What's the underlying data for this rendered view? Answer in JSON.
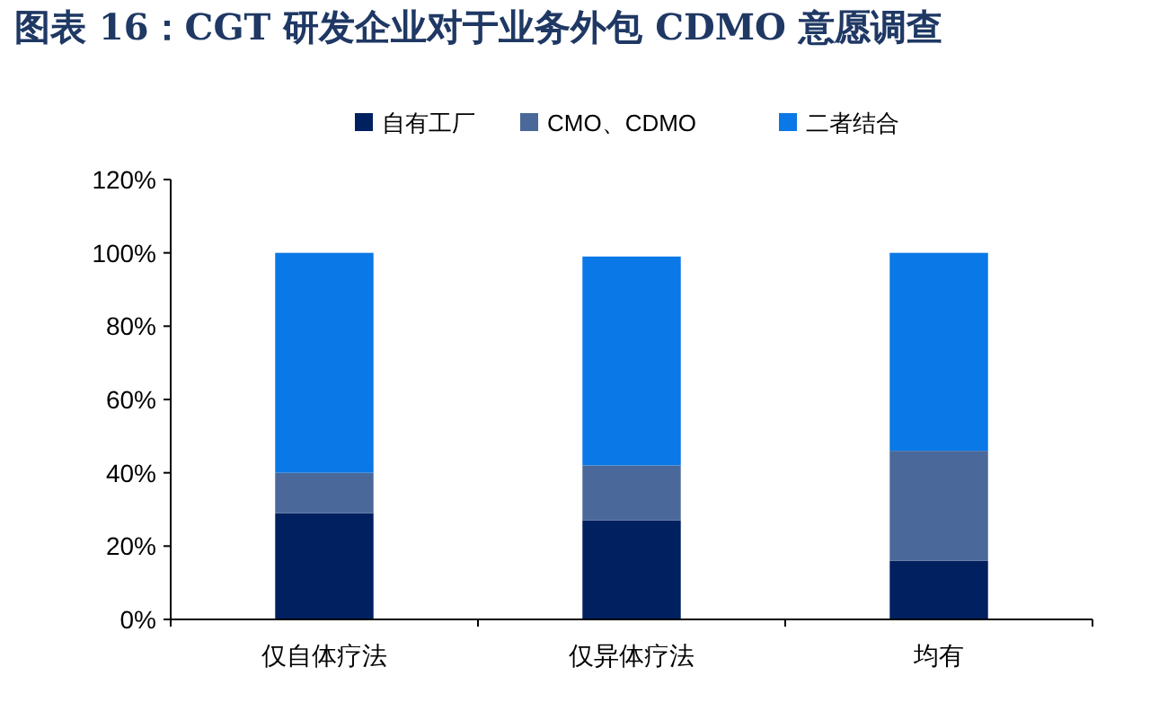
{
  "chart_data": {
    "type": "bar",
    "title": "图表 16：CGT 研发企业对于业务外包 CDMO 意愿调查",
    "categories": [
      "仅自体疗法",
      "仅异体疗法",
      "均有"
    ],
    "stacked": true,
    "legend": "top",
    "series": [
      {
        "name": "自有工厂",
        "color": "#002060",
        "values": [
          29,
          27,
          16
        ]
      },
      {
        "name": "CMO、CDMO",
        "color": "#4a6899",
        "values": [
          11,
          15,
          30
        ]
      },
      {
        "name": "二者结合",
        "color": "#0a78e6",
        "values": [
          60,
          57,
          54
        ]
      }
    ],
    "ylim": [
      0,
      120
    ],
    "yticks": [
      {
        "value": 0,
        "label": "0%"
      },
      {
        "value": 20,
        "label": "20%"
      },
      {
        "value": 40,
        "label": "40%"
      },
      {
        "value": 60,
        "label": "60%"
      },
      {
        "value": 80,
        "label": "80%"
      },
      {
        "value": 100,
        "label": "100%"
      },
      {
        "value": 120,
        "label": "120%"
      }
    ],
    "grid": false
  }
}
